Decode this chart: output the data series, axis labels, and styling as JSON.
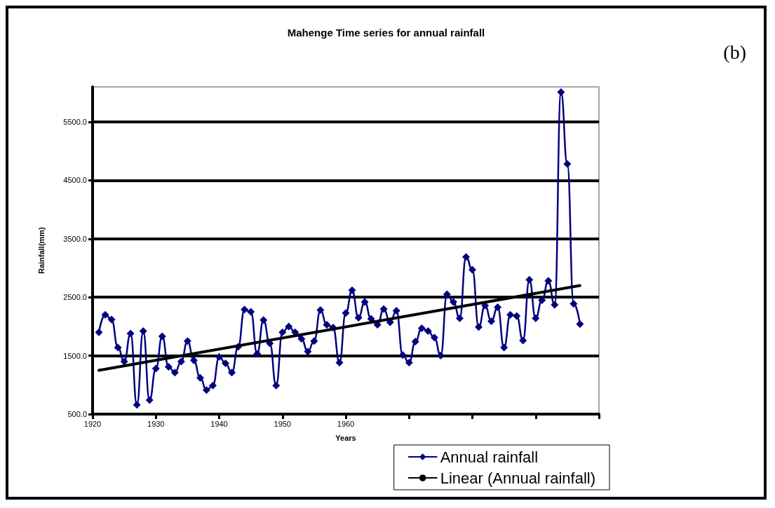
{
  "chart_data": {
    "type": "line",
    "title": "Mahenge Time series for annual rainfall",
    "xlabel": "Years",
    "ylabel": "Rainfall(mm)",
    "annotations": [
      "(b)"
    ],
    "series": [
      {
        "name": "Annual rainfall",
        "color": "#000080",
        "marker": "diamond",
        "x": [
          1921,
          1922,
          1923,
          1924,
          1925,
          1926,
          1927,
          1928,
          1929,
          1930,
          1931,
          1932,
          1933,
          1934,
          1935,
          1936,
          1937,
          1938,
          1939,
          1940,
          1941,
          1942,
          1943,
          1944,
          1945,
          1946,
          1947,
          1948,
          1949,
          1950,
          1951,
          1952,
          1953,
          1954,
          1955,
          1956,
          1957,
          1958,
          1959,
          1960,
          1961,
          1962,
          1963,
          1964,
          1965,
          1966,
          1967,
          1968,
          1969,
          1970,
          1971,
          1972,
          1973,
          1974,
          1975,
          1976,
          1977,
          1978,
          1979,
          1980,
          1981,
          1982,
          1983,
          1984,
          1985,
          1986,
          1987,
          1988,
          1989,
          1990,
          1991,
          1992,
          1993,
          1994,
          1995,
          1996,
          1997
        ],
        "values": [
          1900,
          2200,
          2120,
          1640,
          1400,
          1880,
          660,
          1920,
          740,
          1280,
          1830,
          1310,
          1210,
          1400,
          1750,
          1420,
          1120,
          910,
          990,
          1480,
          1370,
          1210,
          1650,
          2290,
          2250,
          1530,
          2110,
          1710,
          990,
          1900,
          2000,
          1900,
          1790,
          1570,
          1750,
          2280,
          2030,
          1980,
          1380,
          2230,
          2620,
          2150,
          2420,
          2130,
          2030,
          2300,
          2070,
          2270,
          1510,
          1380,
          1740,
          1970,
          1920,
          1810,
          1500,
          2550,
          2420,
          2140,
          3190,
          2970,
          1990,
          2360,
          2090,
          2330,
          1640,
          2200,
          2180,
          1760,
          2800,
          2140,
          2450,
          2780,
          2370,
          6010,
          4780,
          2390,
          2040
        ]
      },
      {
        "name": "Linear (Annual rainfall)",
        "color": "#000000",
        "marker": "none",
        "x": [
          1921,
          1997
        ],
        "values": [
          1250,
          2700
        ]
      }
    ],
    "xlim": [
      1920,
      2000
    ],
    "xticks": [
      1920,
      1930,
      1940,
      1950,
      1960,
      {
        "value": 1970,
        "label": null
      },
      {
        "value": 1980,
        "label": null
      },
      {
        "value": 1990,
        "label": null
      },
      {
        "value": 2000,
        "label": null
      }
    ],
    "ylim": [
      500,
      6100
    ],
    "yticks": [
      {
        "value": 500,
        "label": "500.0"
      },
      {
        "value": 1500,
        "label": "1500.0"
      },
      {
        "value": 2500,
        "label": "2500.0"
      },
      {
        "value": 3500,
        "label": "3500.0"
      },
      {
        "value": 4500,
        "label": "4500.0"
      },
      {
        "value": 5500,
        "label": "5500.0"
      }
    ],
    "grid": "y",
    "legend": "bottom right",
    "line_style": "solid"
  }
}
